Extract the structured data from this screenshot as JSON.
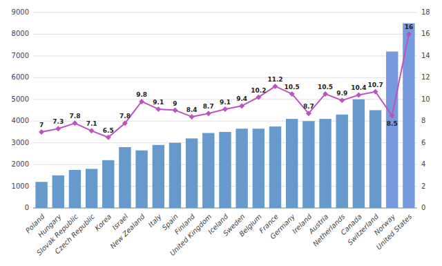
{
  "chart_data": {
    "type": "bar",
    "categories": [
      "Poland",
      "Hungary",
      "Slovak Republic",
      "Czech Republic",
      "Korea",
      "Israel",
      "New Zealand",
      "Italy",
      "Spain",
      "Finland",
      "United Kingdom",
      "Iceland",
      "Sweden",
      "Belgium",
      "France",
      "Germany",
      "Ireland",
      "Austria",
      "Netherlands",
      "Canada",
      "Switzerland",
      "Norway",
      "United States"
    ],
    "series": [
      {
        "type": "bar",
        "values": [
          1200,
          1500,
          1750,
          1800,
          2200,
          2800,
          2650,
          2900,
          3000,
          3200,
          3450,
          3500,
          3650,
          3650,
          3750,
          4100,
          4000,
          4100,
          4300,
          5000,
          4500,
          7200,
          8500
        ],
        "colors": [
          "#6699cc",
          "#6699cc",
          "#6699cc",
          "#6699cc",
          "#6699cc",
          "#6699cc",
          "#6699cc",
          "#6699cc",
          "#6699cc",
          "#6699cc",
          "#6699cc",
          "#6699cc",
          "#6699cc",
          "#6699cc",
          "#6699cc",
          "#6699cc",
          "#6699cc",
          "#6699cc",
          "#6699cc",
          "#6699cc",
          "#6699cc",
          "#7799dd",
          "#7799dd"
        ]
      },
      {
        "type": "line",
        "axis": "y2",
        "color": "#bb55bb",
        "marker": "diamond",
        "data_labels": true,
        "values": [
          7,
          7.3,
          7.8,
          7.1,
          6.5,
          7.8,
          9.8,
          9.1,
          9,
          8.4,
          8.7,
          9.1,
          9.4,
          10.2,
          11.2,
          10.5,
          8.7,
          10.5,
          9.9,
          10.4,
          10.7,
          8.5,
          16
        ]
      }
    ],
    "ylim": [
      0,
      9000
    ],
    "yticks": [
      0,
      1000,
      2000,
      3000,
      4000,
      5000,
      6000,
      7000,
      8000,
      9000
    ],
    "y2lim": [
      0,
      18
    ],
    "y2ticks": [
      0,
      2,
      4,
      6,
      8,
      10,
      12,
      14,
      16,
      18
    ],
    "grid": true
  }
}
